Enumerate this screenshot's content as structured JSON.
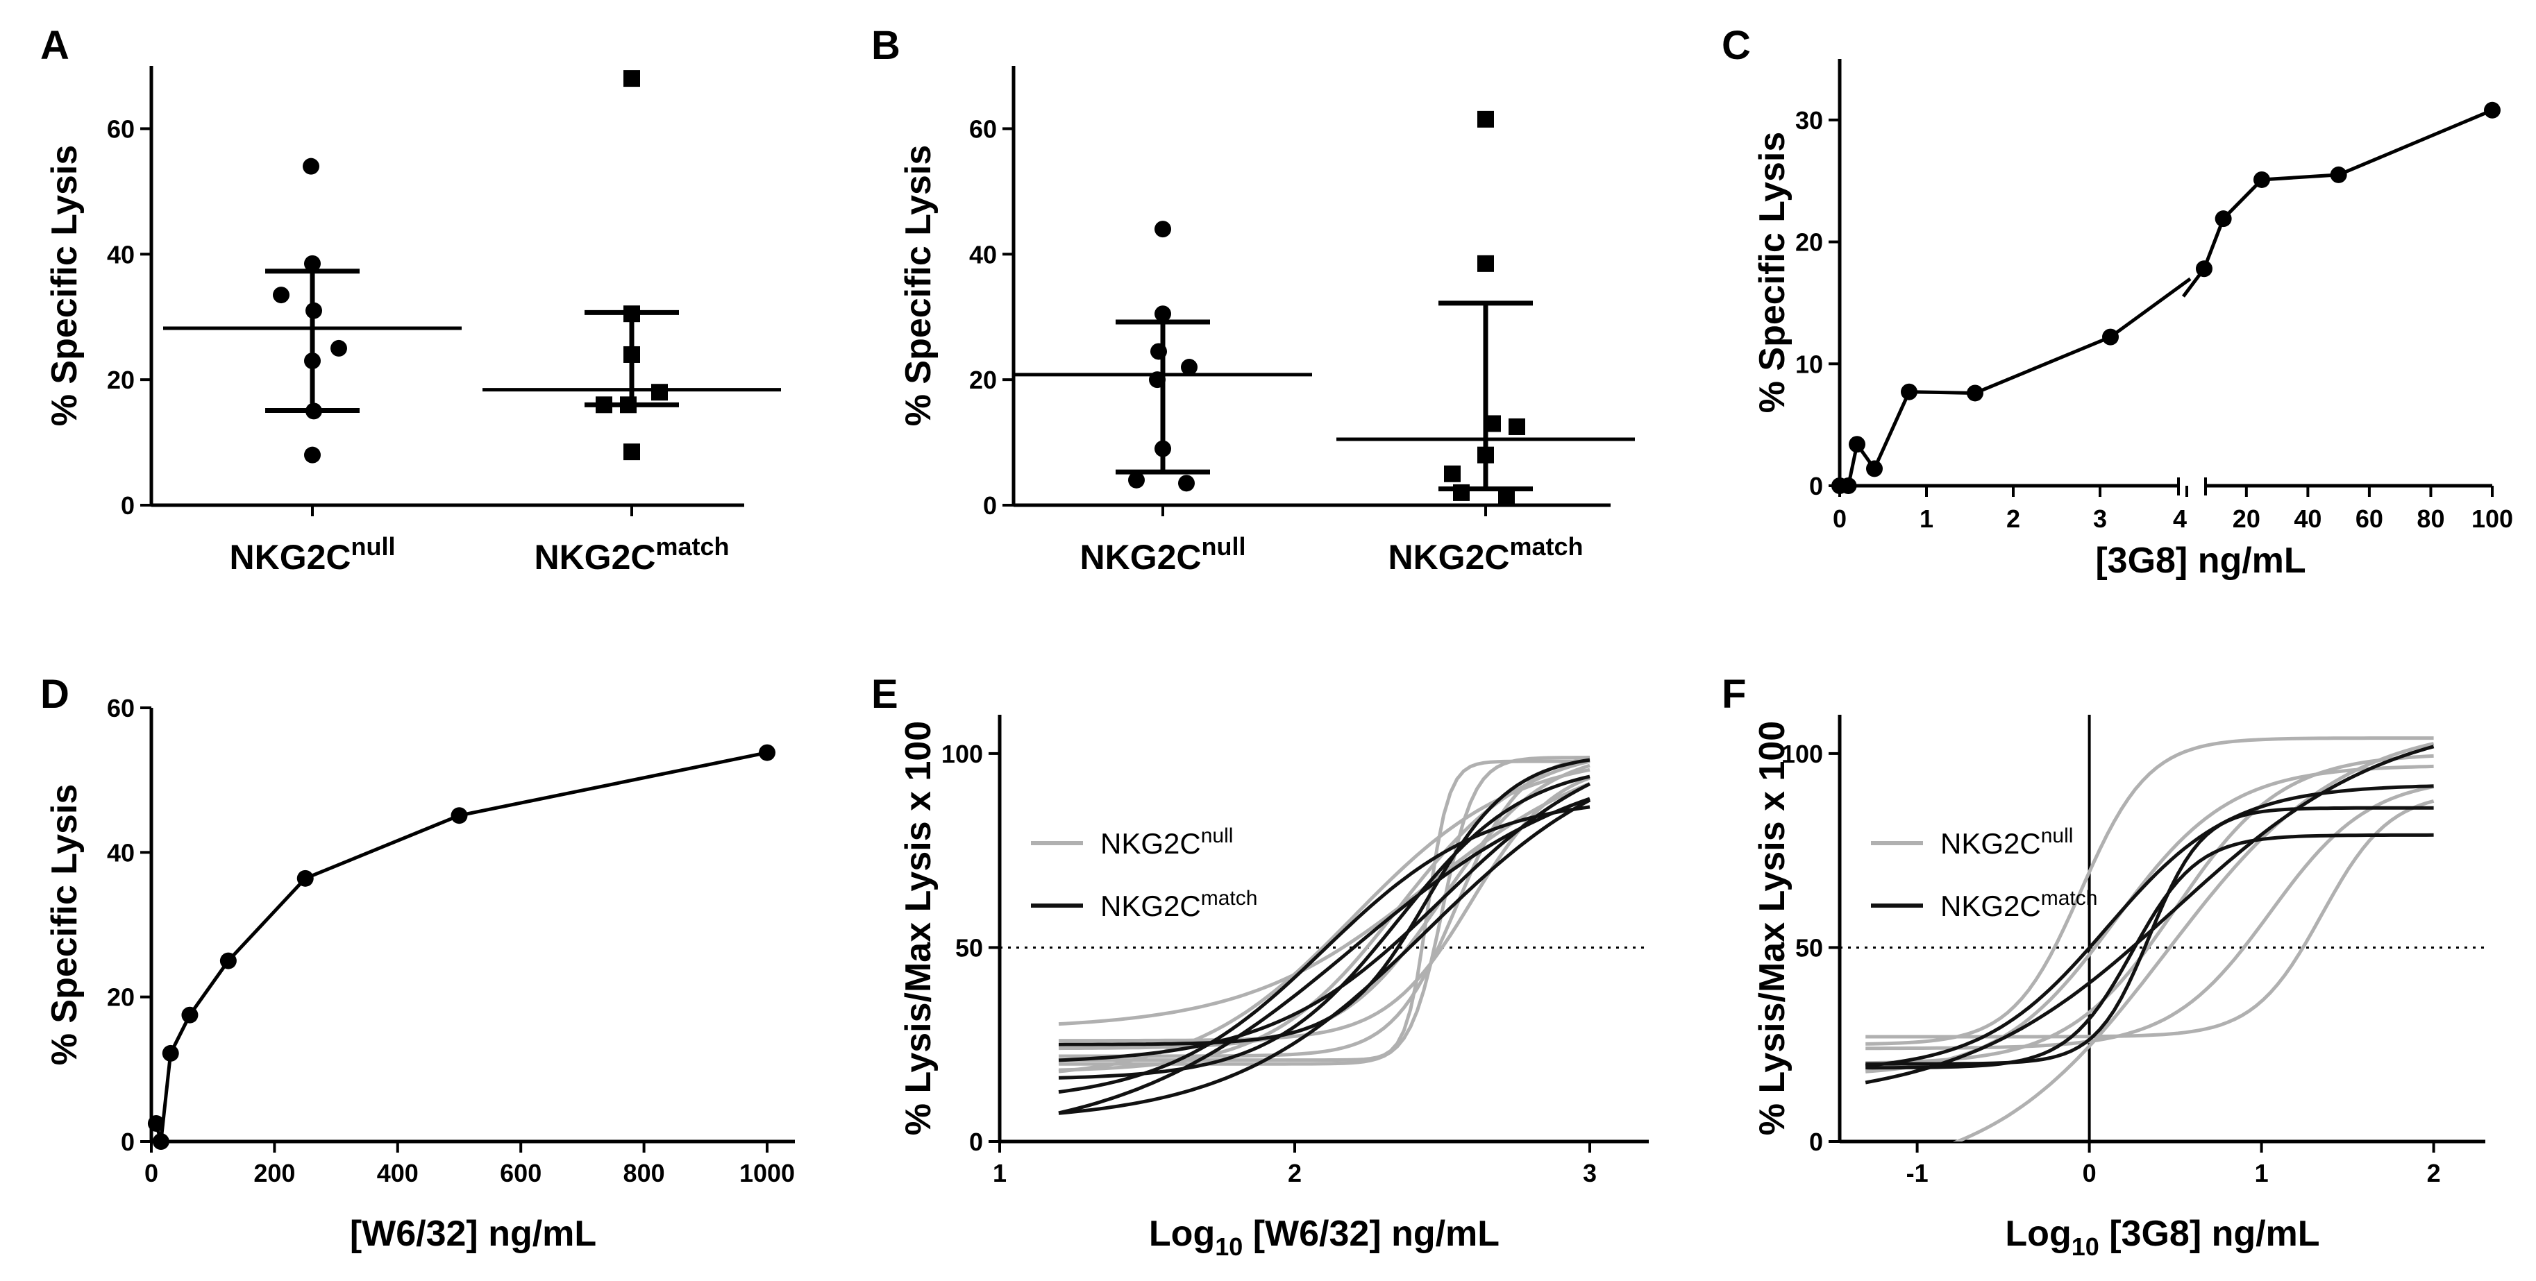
{
  "chart_data": [
    {
      "panel": "A",
      "type": "scatter",
      "ylabel": "% Specific Lysis",
      "ylim": [
        0,
        70
      ],
      "yticks": [
        0,
        20,
        40,
        60
      ],
      "categories": [
        {
          "name": "NKG2C",
          "sup": "null",
          "marker": "circle",
          "values": [
            54,
            38.5,
            33.5,
            31,
            25,
            23,
            15,
            8
          ],
          "mean": 28.2,
          "sd_upper": 37.3,
          "sd_lower": 15.1
        },
        {
          "name": "NKG2C",
          "sup": "match",
          "marker": "square",
          "values": [
            68,
            30.5,
            24,
            18,
            16,
            16,
            8.5
          ],
          "mean": 18.4,
          "sd_upper": 30.7,
          "sd_lower": 16.0
        }
      ]
    },
    {
      "panel": "B",
      "type": "scatter",
      "ylabel": "% Specific Lysis",
      "ylim": [
        0,
        70
      ],
      "yticks": [
        0,
        20,
        40,
        60
      ],
      "categories": [
        {
          "name": "NKG2C",
          "sup": "null",
          "marker": "circle",
          "values": [
            44,
            30.5,
            24.5,
            22,
            20,
            9,
            4,
            3.5
          ],
          "mean": 20.8,
          "sd_upper": 29.2,
          "sd_lower": 5.3
        },
        {
          "name": "NKG2C",
          "sup": "match",
          "marker": "square",
          "values": [
            61.5,
            38.5,
            13,
            12.5,
            8,
            5,
            2,
            1.5
          ],
          "mean": 10.5,
          "sd_upper": 32.2,
          "sd_lower": 2.6
        }
      ]
    },
    {
      "panel": "C",
      "type": "line",
      "xlabel": "[3G8] ng/mL",
      "ylabel": "% Specific Lysis",
      "ylim": [
        0,
        35
      ],
      "yticks": [
        0,
        10,
        20,
        30
      ],
      "left_segment": {
        "xlim": [
          0,
          4
        ],
        "xticks": [
          0,
          1,
          2,
          3,
          4
        ],
        "x": [
          0,
          0.1,
          0.2,
          0.4,
          0.8,
          1.56,
          3.12
        ],
        "y": [
          0,
          0,
          3.4,
          1.4,
          7.7,
          7.6,
          12.2
        ]
      },
      "right_segment": {
        "xlim": [
          4,
          100
        ],
        "xticks": [
          20,
          40,
          60,
          80,
          100
        ],
        "x": [
          6.25,
          12.5,
          25,
          50,
          100
        ],
        "y": [
          17.8,
          21.9,
          25.1,
          25.5,
          30.8
        ]
      }
    },
    {
      "panel": "D",
      "type": "line",
      "xlabel": "[W6/32] ng/mL",
      "ylabel": "% Specific Lysis",
      "xlim": [
        0,
        1000
      ],
      "ylim": [
        0,
        60
      ],
      "xticks": [
        0,
        200,
        400,
        600,
        800,
        1000
      ],
      "yticks": [
        0,
        20,
        40,
        60
      ],
      "x": [
        7.8,
        15.6,
        31.25,
        62.5,
        125,
        250,
        500,
        1000
      ],
      "y": [
        2.5,
        0,
        12.2,
        17.5,
        25,
        36.4,
        45.1,
        53.8
      ]
    },
    {
      "panel": "E",
      "type": "line",
      "xlabel_prefix": "Log",
      "xlabel_sub": "10",
      "xlabel_rest": " [W6/32] ng/mL",
      "ylabel": "% Lysis/Max Lysis x 100",
      "xlim": [
        1,
        3.2
      ],
      "ylim": [
        0,
        110
      ],
      "xticks": [
        1,
        2,
        3
      ],
      "yticks": [
        0,
        50,
        100
      ],
      "reference_y": 50,
      "legend": [
        {
          "label": "NKG2C",
          "sup": "null",
          "color": "#b0b0b0"
        },
        {
          "label": "NKG2C",
          "sup": "match",
          "color": "#111111"
        }
      ],
      "x_range": [
        1.2,
        3.0
      ],
      "series": [
        {
          "group": "null",
          "bottom": 29,
          "top": 103,
          "ec50": 2.45,
          "hill": 1.4
        },
        {
          "group": "null",
          "bottom": 24,
          "top": 101,
          "ec50": 2.5,
          "hill": 2.5
        },
        {
          "group": "null",
          "bottom": 22,
          "top": 100,
          "ec50": 2.55,
          "hill": 4
        },
        {
          "group": "null",
          "bottom": 20,
          "top": 99,
          "ec50": 2.5,
          "hill": 8
        },
        {
          "group": "null",
          "bottom": 21,
          "top": 98,
          "ec50": 2.45,
          "hill": 12
        },
        {
          "group": "null",
          "bottom": 18,
          "top": 102,
          "ec50": 2.35,
          "hill": 2
        },
        {
          "group": "null",
          "bottom": 26,
          "top": 98,
          "ec50": 2.6,
          "hill": 3
        },
        {
          "group": "null",
          "bottom": 16,
          "top": 100,
          "ec50": 2.2,
          "hill": 1.6
        },
        {
          "group": "match",
          "bottom": 0,
          "top": 100,
          "ec50": 2.2,
          "hill": 1.1
        },
        {
          "group": "match",
          "bottom": 10,
          "top": 89,
          "ec50": 2.1,
          "hill": 1.6
        },
        {
          "group": "match",
          "bottom": 20,
          "top": 105,
          "ec50": 2.5,
          "hill": 1.5
        },
        {
          "group": "match",
          "bottom": 25,
          "top": 100,
          "ec50": 2.45,
          "hill": 3
        },
        {
          "group": "match",
          "bottom": 16,
          "top": 98,
          "ec50": 2.35,
          "hill": 2
        },
        {
          "group": "match",
          "bottom": 5,
          "top": 104,
          "ec50": 2.45,
          "hill": 1.3
        }
      ]
    },
    {
      "panel": "F",
      "type": "line",
      "xlabel_prefix": "Log",
      "xlabel_sub": "10",
      "xlabel_rest": " [3G8] ng/mL",
      "ylabel": "% Lysis/Max Lysis x 100",
      "xlim": [
        -1.45,
        2.3
      ],
      "ylim": [
        0,
        110
      ],
      "xticks": [
        -1,
        0,
        1,
        2
      ],
      "yticks": [
        0,
        50,
        100
      ],
      "reference_y": 50,
      "reference_x": 0,
      "legend": [
        {
          "label": "NKG2C",
          "sup": "null",
          "color": "#b0b0b0"
        },
        {
          "label": "NKG2C",
          "sup": "match",
          "color": "#111111"
        }
      ],
      "x_range": [
        -1.3,
        2.0
      ],
      "series": [
        {
          "group": "null",
          "bottom": 25,
          "top": 104,
          "ec50": -0.05,
          "hill": 2.2
        },
        {
          "group": "null",
          "bottom": 17,
          "top": 97,
          "ec50": 0.15,
          "hill": 1.3
        },
        {
          "group": "null",
          "bottom": 20,
          "top": 100,
          "ec50": 0.5,
          "hill": 1.4
        },
        {
          "group": "null",
          "bottom": 24,
          "top": 94,
          "ec50": 1.05,
          "hill": 1.5
        },
        {
          "group": "null",
          "bottom": 27,
          "top": 90,
          "ec50": 1.35,
          "hill": 2.2
        },
        {
          "group": "null",
          "bottom": -10,
          "top": 108,
          "ec50": 0.45,
          "hill": 0.85
        },
        {
          "group": "match",
          "bottom": 19,
          "top": 79,
          "ec50": 0.25,
          "hill": 2.3
        },
        {
          "group": "match",
          "bottom": 18,
          "top": 92,
          "ec50": 0.1,
          "hill": 1.2
        },
        {
          "group": "match",
          "bottom": 20,
          "top": 86,
          "ec50": 0.35,
          "hill": 2.8
        },
        {
          "group": "match",
          "bottom": 10,
          "top": 110,
          "ec50": 0.5,
          "hill": 0.7
        }
      ]
    }
  ]
}
